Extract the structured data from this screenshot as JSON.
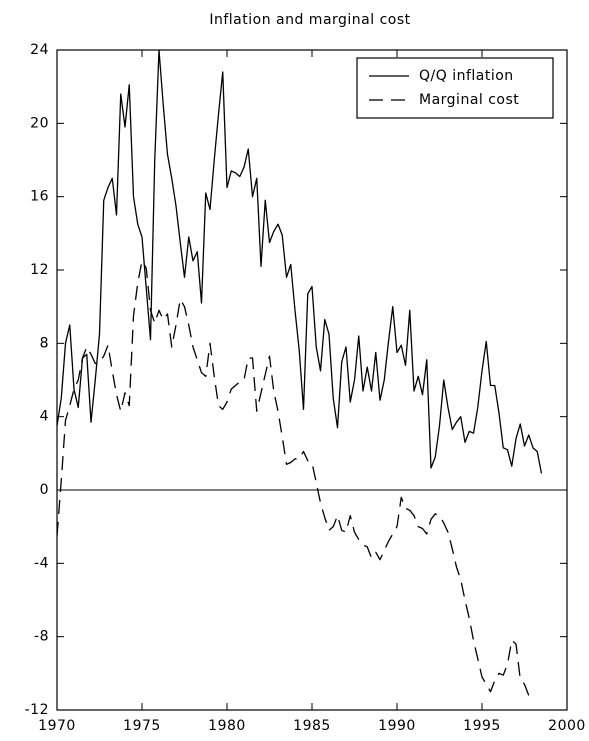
{
  "chart_data": {
    "type": "line",
    "title": "Inflation and marginal cost",
    "xlim": [
      1970,
      2000
    ],
    "xticks": [
      1970,
      1975,
      1980,
      1985,
      1990,
      1995,
      2000
    ],
    "ylim": [
      -12,
      24
    ],
    "yticks": [
      -12,
      -8,
      -4,
      0,
      4,
      8,
      12,
      16,
      20,
      24
    ],
    "zero_line": true,
    "legend": "upper right",
    "series": [
      {
        "name": "Q/Q inflation",
        "color": "#000000",
        "dash": "solid",
        "x": [
          1970.0,
          1970.25,
          1970.5,
          1970.75,
          1971.0,
          1971.25,
          1971.5,
          1971.75,
          1972.0,
          1972.25,
          1972.5,
          1972.75,
          1973.0,
          1973.25,
          1973.5,
          1973.75,
          1974.0,
          1974.25,
          1974.5,
          1974.75,
          1975.0,
          1975.25,
          1975.5,
          1975.75,
          1976.0,
          1976.25,
          1976.5,
          1976.75,
          1977.0,
          1977.25,
          1977.5,
          1977.75,
          1978.0,
          1978.25,
          1978.5,
          1978.75,
          1979.0,
          1979.25,
          1979.5,
          1979.75,
          1980.0,
          1980.25,
          1980.5,
          1980.75,
          1981.0,
          1981.25,
          1981.5,
          1981.75,
          1982.0,
          1982.25,
          1982.5,
          1982.75,
          1983.0,
          1983.25,
          1983.5,
          1983.75,
          1984.0,
          1984.25,
          1984.5,
          1984.75,
          1985.0,
          1985.25,
          1985.5,
          1985.75,
          1986.0,
          1986.25,
          1986.5,
          1986.75,
          1987.0,
          1987.25,
          1987.5,
          1987.75,
          1988.0,
          1988.25,
          1988.5,
          1988.75,
          1989.0,
          1989.25,
          1989.5,
          1989.75,
          1990.0,
          1990.25,
          1990.5,
          1990.75,
          1991.0,
          1991.25,
          1991.5,
          1991.75,
          1992.0,
          1992.25,
          1992.5,
          1992.75,
          1993.0,
          1993.25,
          1993.5,
          1993.75,
          1994.0,
          1994.25,
          1994.5,
          1994.75,
          1995.0,
          1995.25,
          1995.5,
          1995.75,
          1996.0,
          1996.25,
          1996.5,
          1996.75,
          1997.0,
          1997.25,
          1997.5,
          1997.75,
          1998.0,
          1998.25,
          1998.5
        ],
        "values": [
          3.5,
          5,
          8,
          9,
          5.5,
          4.5,
          7.2,
          7.4,
          3.7,
          6,
          8.5,
          15.8,
          16.5,
          17,
          15,
          21.6,
          19.8,
          22.1,
          16,
          14.5,
          13.8,
          11,
          8.2,
          18,
          24,
          21,
          18.3,
          17,
          15.5,
          13.5,
          11.6,
          13.8,
          12.5,
          13,
          10.2,
          16.2,
          15.3,
          18,
          20.5,
          22.8,
          16.5,
          17.4,
          17.3,
          17.1,
          17.6,
          18.6,
          16,
          17,
          12.2,
          15.8,
          13.5,
          14.1,
          14.5,
          13.9,
          11.6,
          12.3,
          9.8,
          7.6,
          4.4,
          10.7,
          11.1,
          7.8,
          6.5,
          9.3,
          8.5,
          5,
          3.4,
          7,
          7.8,
          4.8,
          6,
          8.4,
          5.4,
          6.7,
          5.4,
          7.5,
          4.9,
          6,
          8.1,
          10,
          7.5,
          7.9,
          6.8,
          9.8,
          5.4,
          6.2,
          5.2,
          7.1,
          1.2,
          1.8,
          3.5,
          6,
          4.5,
          3.3,
          3.7,
          4,
          2.6,
          3.2,
          3.1,
          4.5,
          6.5,
          8.1,
          5.7,
          5.7,
          4.2,
          2.3,
          2.2,
          1.3,
          2.8,
          3.6,
          2.4,
          3,
          2.3,
          2.1,
          0.9
        ]
      },
      {
        "name": "Marginal cost",
        "color": "#000000",
        "dash": "dashed",
        "x": [
          1970.0,
          1970.25,
          1970.5,
          1970.75,
          1971.0,
          1971.25,
          1971.5,
          1971.75,
          1972.0,
          1972.25,
          1972.5,
          1972.75,
          1973.0,
          1973.25,
          1973.5,
          1973.75,
          1974.0,
          1974.25,
          1974.5,
          1974.75,
          1975.0,
          1975.25,
          1975.5,
          1975.75,
          1976.0,
          1976.25,
          1976.5,
          1976.75,
          1977.0,
          1977.25,
          1977.5,
          1977.75,
          1978.0,
          1978.25,
          1978.5,
          1978.75,
          1979.0,
          1979.25,
          1979.5,
          1979.75,
          1980.0,
          1980.25,
          1980.5,
          1980.75,
          1981.0,
          1981.25,
          1981.5,
          1981.75,
          1982.0,
          1982.25,
          1982.5,
          1982.75,
          1983.0,
          1983.25,
          1983.5,
          1983.75,
          1984.0,
          1984.25,
          1984.5,
          1984.75,
          1985.0,
          1985.25,
          1985.5,
          1985.75,
          1986.0,
          1986.25,
          1986.5,
          1986.75,
          1987.0,
          1987.25,
          1987.5,
          1987.75,
          1988.0,
          1988.25,
          1988.5,
          1988.75,
          1989.0,
          1989.25,
          1989.5,
          1989.75,
          1990.0,
          1990.25,
          1990.5,
          1990.75,
          1991.0,
          1991.25,
          1991.5,
          1991.75,
          1992.0,
          1992.25,
          1992.5,
          1992.75,
          1993.0,
          1993.25,
          1993.5,
          1993.75,
          1994.0,
          1994.25,
          1994.5,
          1994.75,
          1995.0,
          1995.25,
          1995.5,
          1995.75,
          1996.0,
          1996.25,
          1996.5,
          1996.75,
          1997.0,
          1997.25,
          1997.5,
          1997.75
        ],
        "values": [
          -2.5,
          0.5,
          3.8,
          4.6,
          5.5,
          6,
          7.2,
          7.8,
          7.4,
          6.9,
          7,
          7.3,
          7.9,
          6.5,
          5.2,
          4.3,
          5.3,
          4.6,
          9.5,
          11.3,
          12.5,
          12.1,
          9.8,
          9.1,
          9.8,
          9.3,
          9.6,
          7.8,
          9,
          10.4,
          10,
          9,
          7.8,
          7.1,
          6.4,
          6.2,
          8,
          6.2,
          4.6,
          4.4,
          4.8,
          5.5,
          5.7,
          5.9,
          6,
          7.2,
          7.2,
          4.3,
          5.3,
          6.3,
          7.3,
          5.4,
          4.3,
          2.9,
          1.4,
          1.5,
          1.7,
          1.7,
          2.1,
          1.6,
          1.5,
          0.4,
          -0.7,
          -1.5,
          -2.2,
          -2,
          -1.4,
          -2.2,
          -2.3,
          -1.4,
          -2.3,
          -2.7,
          -3,
          -3.1,
          -3.7,
          -3.4,
          -3.8,
          -3.3,
          -2.8,
          -2.4,
          -2,
          -0.4,
          -1,
          -1.1,
          -1.4,
          -2,
          -2.1,
          -2.4,
          -1.6,
          -1.3,
          -1.4,
          -1.8,
          -2.3,
          -3.2,
          -4.2,
          -4.9,
          -6,
          -7,
          -8.2,
          -9.2,
          -10.2,
          -10.6,
          -11,
          -10.4,
          -10,
          -10.1,
          -9.5,
          -8.2,
          -8.4,
          -10.3,
          -10.6,
          -11.2
        ]
      }
    ]
  }
}
